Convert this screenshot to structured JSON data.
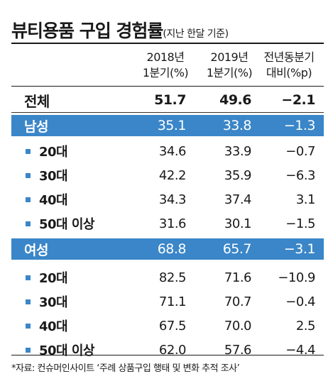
{
  "title": "뷰티용품 구입 경험률",
  "subtitle": "(지난 한달 기준)",
  "columns": {
    "c1": [
      "2018년",
      "1분기(%)"
    ],
    "c2": [
      "2019년",
      "1분기(%)"
    ],
    "c3": [
      "전년동분기",
      "대비(%p)"
    ]
  },
  "footer": "*자료: 컨슈머인사이트 ‘주례 상품구입 행태 및 변화 추적 조사’",
  "chart_data": {
    "type": "table",
    "title": "뷰티용품 구입 경험률",
    "subtitle": "(지난 한달 기준)",
    "headers": [
      "2018년 1분기(%)",
      "2019년 1분기(%)",
      "전년동분기 대비(%p)"
    ],
    "rows": [
      {
        "label": "전체",
        "kind": "total",
        "values": [
          "51.7",
          "49.6",
          "−2.1"
        ]
      },
      {
        "label": "남성",
        "kind": "group",
        "values": [
          "35.1",
          "33.8",
          "−1.3"
        ]
      },
      {
        "label": "20대",
        "kind": "sub",
        "values": [
          "34.6",
          "33.9",
          "−0.7"
        ]
      },
      {
        "label": "30대",
        "kind": "sub",
        "values": [
          "42.2",
          "35.9",
          "−6.3"
        ]
      },
      {
        "label": "40대",
        "kind": "sub",
        "values": [
          "34.3",
          "37.4",
          "3.1"
        ]
      },
      {
        "label": "50대 이상",
        "kind": "sub",
        "values": [
          "31.6",
          "30.1",
          "−1.5"
        ]
      },
      {
        "label": "여성",
        "kind": "group",
        "values": [
          "68.8",
          "65.7",
          "−3.1"
        ]
      },
      {
        "label": "20대",
        "kind": "sub",
        "values": [
          "82.5",
          "71.6",
          "−10.9"
        ]
      },
      {
        "label": "30대",
        "kind": "sub",
        "values": [
          "71.1",
          "70.7",
          "−0.4"
        ]
      },
      {
        "label": "40대",
        "kind": "sub",
        "values": [
          "67.5",
          "70.0",
          "2.5"
        ]
      },
      {
        "label": "50대 이상",
        "kind": "sub",
        "values": [
          "62.0",
          "57.6",
          "−4.4"
        ]
      }
    ],
    "colors": {
      "highlight": "#3a86c8",
      "text": "#1a1a1a"
    }
  }
}
